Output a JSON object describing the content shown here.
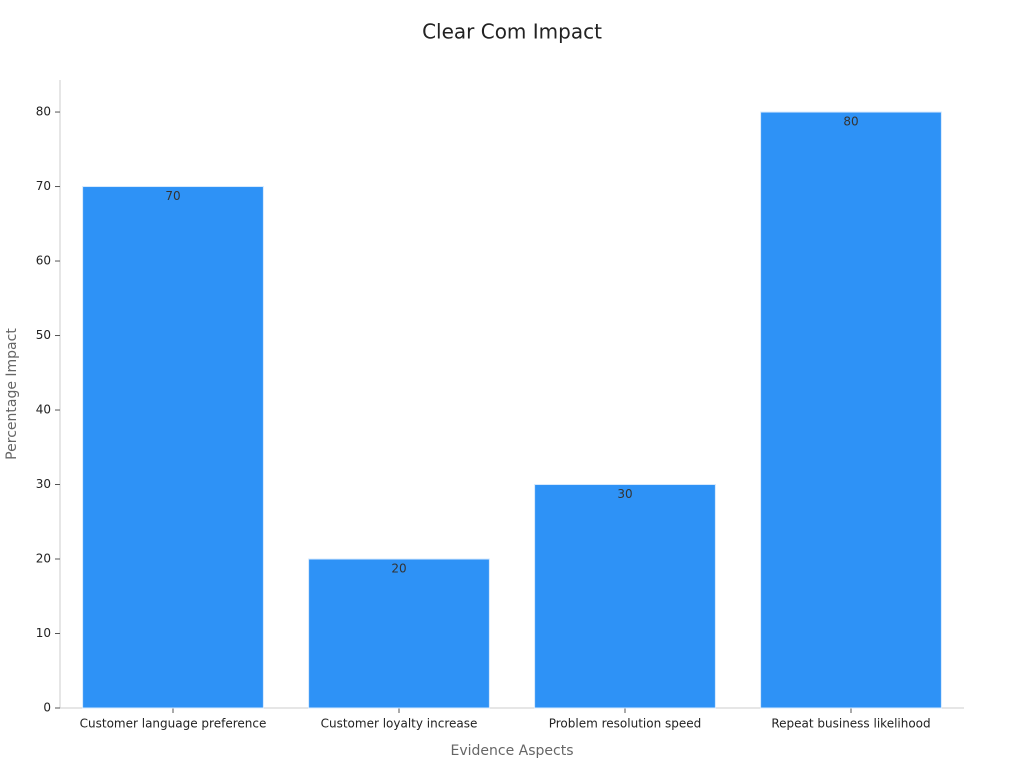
{
  "chart_data": {
    "type": "bar",
    "title": "Clear Com Impact",
    "x_label": "Evidence Aspects",
    "y_label": "Percentage Impact",
    "categories": [
      "Customer language preference",
      "Customer loyalty increase",
      "Problem resolution speed",
      "Repeat business likelihood"
    ],
    "values": [
      70,
      20,
      30,
      80
    ],
    "color": "#2e92f6",
    "ylim": [
      0,
      84.3
    ],
    "yticks": [
      0,
      10,
      20,
      30,
      40,
      50,
      60,
      70,
      80
    ],
    "grid": false
  }
}
